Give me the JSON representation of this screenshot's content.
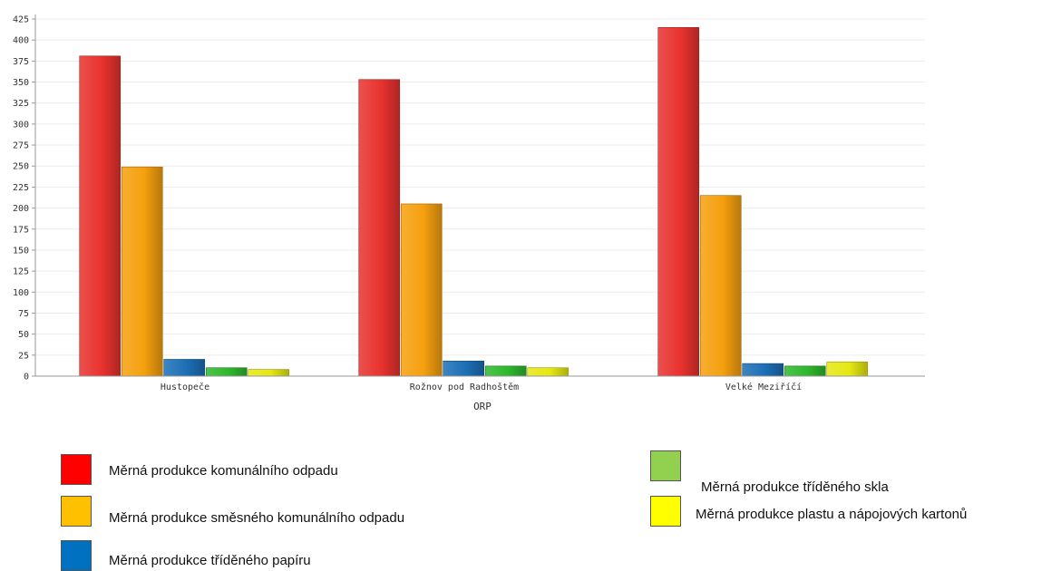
{
  "chart_data": {
    "type": "bar",
    "categories": [
      "Hustopeče",
      "Rožnov pod Radhoštěm",
      "Velké Meziříčí"
    ],
    "xlabel": "ORP",
    "ylabel": "",
    "ylim": [
      0,
      425
    ],
    "yticks": [
      0,
      25,
      50,
      75,
      100,
      125,
      150,
      175,
      200,
      225,
      250,
      275,
      300,
      325,
      350,
      375,
      400,
      425
    ],
    "grid": true,
    "series": [
      {
        "name": "Měrná produkce komunálního odpadu",
        "color": "#e8322f",
        "values": [
          381,
          353,
          415
        ]
      },
      {
        "name": "Měrná produkce směsného komunálního odpadu",
        "color": "#f5a00e",
        "values": [
          249,
          205,
          215
        ]
      },
      {
        "name": "Měrná produkce tříděného papíru",
        "color": "#1c6fb6",
        "values": [
          20,
          18,
          15
        ]
      },
      {
        "name": "Měrná produkce tříděného skla",
        "color": "#2fb82d",
        "values": [
          10,
          12,
          12
        ]
      },
      {
        "name": "Měrná produkce plastu a nápojových kartonů",
        "color": "#e5e812",
        "values": [
          8,
          10,
          17
        ]
      }
    ]
  },
  "legend": {
    "items": [
      {
        "label": "Měrná produkce komunálního odpadu",
        "swatch": "#ff0000"
      },
      {
        "label": "Měrná produkce směsného komunálního odpadu",
        "swatch": "#ffc000"
      },
      {
        "label": "Měrná produkce tříděného papíru",
        "swatch": "#0070c0"
      },
      {
        "label": "Měrná produkce tříděného skla",
        "swatch": "#92d050"
      },
      {
        "label": "Měrná produkce plastu a nápojových kartonů",
        "swatch": "#ffff00"
      }
    ]
  }
}
